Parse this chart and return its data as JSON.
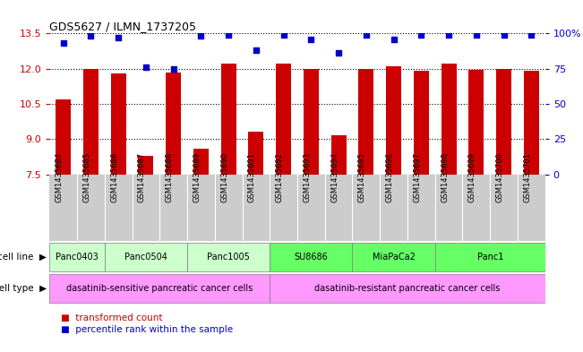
{
  "title": "GDS5627 / ILMN_1737205",
  "samples": [
    "GSM1435684",
    "GSM1435685",
    "GSM1435686",
    "GSM1435687",
    "GSM1435688",
    "GSM1435689",
    "GSM1435690",
    "GSM1435691",
    "GSM1435692",
    "GSM1435693",
    "GSM1435694",
    "GSM1435695",
    "GSM1435696",
    "GSM1435697",
    "GSM1435698",
    "GSM1435699",
    "GSM1435700",
    "GSM1435701"
  ],
  "bar_values": [
    10.7,
    12.0,
    11.8,
    8.3,
    11.85,
    8.6,
    12.2,
    9.3,
    12.2,
    12.0,
    9.15,
    12.0,
    12.1,
    11.9,
    12.2,
    11.95,
    12.0,
    11.9
  ],
  "percentile_values": [
    93,
    98,
    97,
    76,
    75,
    98,
    99,
    88,
    99,
    96,
    86,
    99,
    96,
    99,
    99,
    99,
    99,
    99
  ],
  "bar_color": "#cc0000",
  "percentile_color": "#0000cc",
  "ylim_left": [
    7.5,
    13.5
  ],
  "ylim_right": [
    0,
    100
  ],
  "yticks_left": [
    7.5,
    9.0,
    10.5,
    12.0,
    13.5
  ],
  "yticks_right": [
    0,
    25,
    50,
    75,
    100
  ],
  "cell_lines": [
    {
      "label": "Panc0403",
      "start": 0,
      "end": 1,
      "color": "#ccffcc"
    },
    {
      "label": "Panc0504",
      "start": 2,
      "end": 4,
      "color": "#ccffcc"
    },
    {
      "label": "Panc1005",
      "start": 5,
      "end": 7,
      "color": "#ccffcc"
    },
    {
      "label": "SU8686",
      "start": 8,
      "end": 10,
      "color": "#66ff66"
    },
    {
      "label": "MiaPaCa2",
      "start": 11,
      "end": 13,
      "color": "#66ff66"
    },
    {
      "label": "Panc1",
      "start": 14,
      "end": 17,
      "color": "#66ff66"
    }
  ],
  "cell_types": [
    {
      "label": "dasatinib-sensitive pancreatic cancer cells",
      "start": 0,
      "end": 7,
      "color": "#ff99ff"
    },
    {
      "label": "dasatinib-resistant pancreatic cancer cells",
      "start": 8,
      "end": 17,
      "color": "#ff99ff"
    }
  ],
  "legend_bar_label": "transformed count",
  "legend_pct_label": "percentile rank within the sample",
  "cell_line_label": "cell line",
  "cell_type_label": "cell type",
  "left_axis_color": "#cc0000",
  "right_axis_color": "#0000cc",
  "bg_color": "#ffffff",
  "bar_width": 0.55,
  "sample_bg_color": "#cccccc"
}
